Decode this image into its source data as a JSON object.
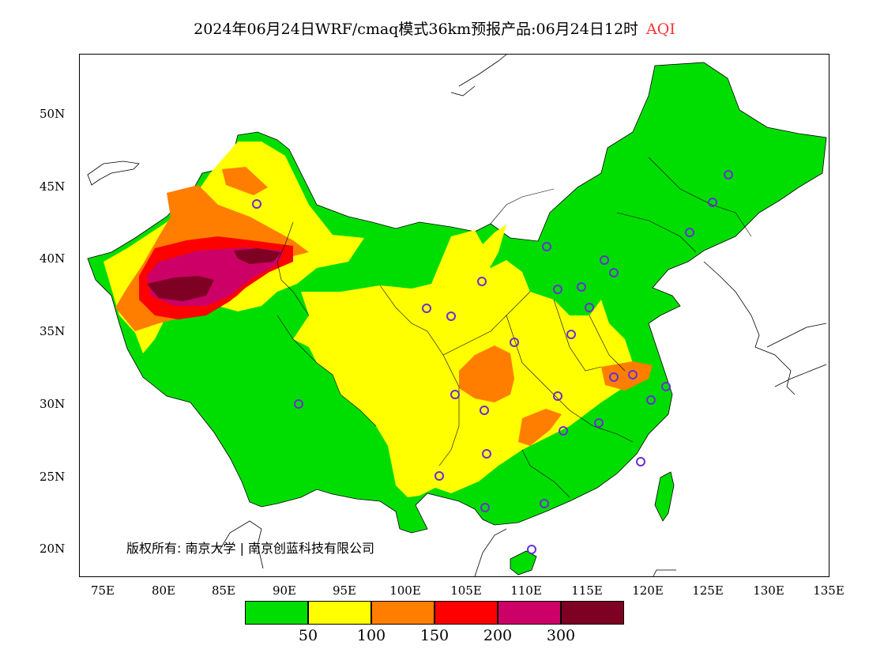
{
  "title": {
    "main": "2024年06月24日WRF/cmaq模式36km预报产品:06月24日12时",
    "variable": "AQI"
  },
  "axes": {
    "y_labels": [
      "50N",
      "45N",
      "40N",
      "35N",
      "30N",
      "25N",
      "20N"
    ],
    "x_labels": [
      "75E",
      "80E",
      "85E",
      "90E",
      "95E",
      "100E",
      "105E",
      "110E",
      "115E",
      "120E",
      "125E",
      "130E",
      "135E"
    ]
  },
  "legend": {
    "colors": [
      "#00dd00",
      "#ffff00",
      "#ff7e00",
      "#ff0000",
      "#cc0066",
      "#7e0023"
    ],
    "labels": [
      "50",
      "100",
      "150",
      "200",
      "300"
    ]
  },
  "copyright": "版权所有: 南京大学 | 南京创蓝科技有限公司",
  "colors": {
    "water": "#ffffff",
    "border": "#000000",
    "station_marker": "#6a2fd0"
  }
}
